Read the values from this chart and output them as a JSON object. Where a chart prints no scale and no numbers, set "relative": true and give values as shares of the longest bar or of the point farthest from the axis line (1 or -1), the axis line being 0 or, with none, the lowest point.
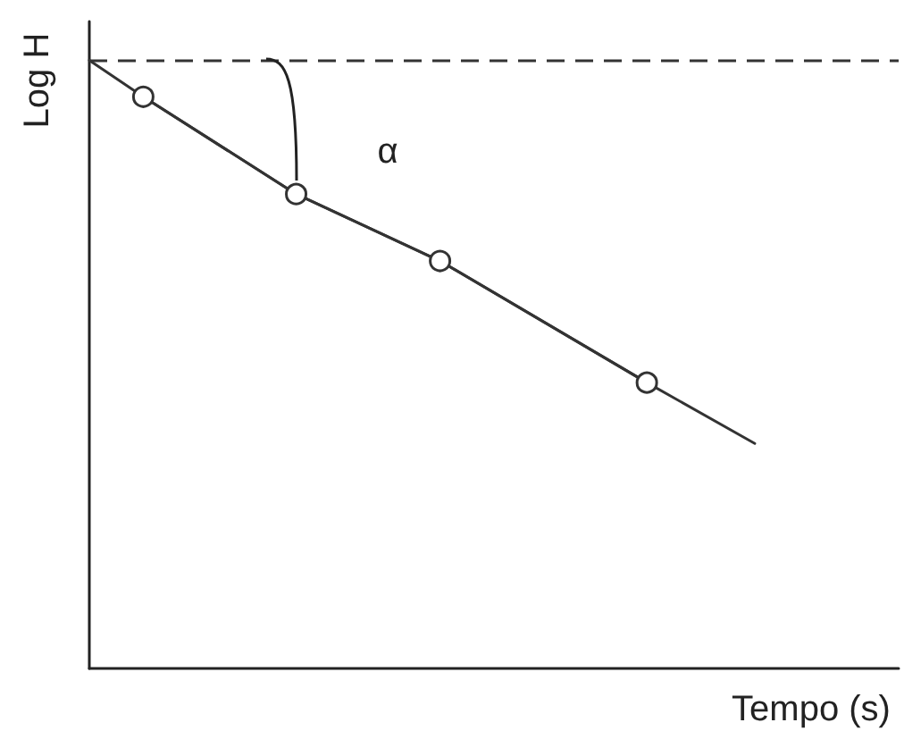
{
  "chart_data": {
    "type": "line",
    "xlabel": "Tempo (s)",
    "ylabel": "Log H",
    "relative": true,
    "categories": [
      null,
      null,
      null,
      null,
      null,
      null,
      null,
      null,
      null,
      null,
      null,
      null,
      null,
      null,
      null,
      null,
      null,
      null,
      null,
      null,
      null,
      null,
      null,
      null,
      null,
      null,
      null,
      null,
      null,
      null,
      null,
      null,
      null,
      null,
      null,
      null,
      null,
      null,
      null,
      null,
      null,
      null,
      null,
      null,
      null,
      null,
      null,
      null,
      null,
      null,
      null,
      null,
      null,
      null,
      null,
      null,
      null,
      null,
      null,
      null,
      null,
      null,
      null,
      null,
      null,
      null,
      null,
      null,
      null,
      null,
      null,
      null,
      null,
      null,
      null,
      null,
      null,
      null,
      null,
      null,
      null,
      null,
      null,
      null,
      null,
      null,
      null,
      null,
      null,
      null,
      null
    ],
    "series": [
      {
        "color": "#333333",
        "marker": "circle",
        "line_style": "solid",
        "values": [
          null,
          null,
          null,
          null,
          null,
          null,
          0.94,
          null,
          null,
          null,
          null,
          null,
          null,
          null,
          null,
          null,
          null,
          null,
          null,
          null,
          null,
          null,
          null,
          0.78,
          null,
          null,
          null,
          null,
          null,
          null,
          null,
          null,
          null,
          null,
          null,
          null,
          null,
          null,
          null,
          0.67,
          null,
          null,
          null,
          null,
          null,
          null,
          null,
          null,
          null,
          null,
          null,
          null,
          null,
          null,
          null,
          null,
          null,
          null,
          null,
          null,
          null,
          null,
          0.47,
          null,
          null,
          null,
          null,
          null,
          null,
          null,
          null,
          null,
          null,
          null,
          null,
          null,
          null,
          null,
          null,
          null,
          null,
          null,
          null,
          null,
          null,
          null,
          null,
          null,
          null,
          null,
          null
        ]
      },
      {
        "color": "#333333",
        "marker": "none",
        "line_style": "solid",
        "values": [
          1,
          null,
          null,
          null,
          null,
          null,
          0.94,
          null,
          null,
          null,
          null,
          null,
          null,
          null,
          null,
          null,
          null,
          null,
          null,
          null,
          null,
          null,
          null,
          0.78,
          null,
          null,
          null,
          null,
          null,
          null,
          null,
          null,
          null,
          null,
          null,
          null,
          null,
          null,
          null,
          0.67,
          null,
          null,
          null,
          null,
          null,
          null,
          null,
          null,
          null,
          null,
          null,
          null,
          null,
          null,
          null,
          null,
          null,
          null,
          null,
          null,
          null,
          null,
          0.47,
          null,
          null,
          null,
          null,
          null,
          null,
          null,
          null,
          null,
          null,
          null,
          0.37,
          null,
          null,
          null,
          null,
          null,
          null,
          null,
          null,
          null,
          null,
          null,
          null,
          null,
          null,
          null,
          null
        ]
      }
    ],
    "ref_lines": [
      {
        "axis": "y",
        "value": 1,
        "color": "#333333",
        "line_style": "dashed"
      }
    ],
    "annotations": [
      "α"
    ]
  }
}
